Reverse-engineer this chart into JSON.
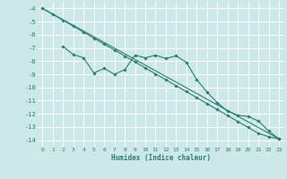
{
  "xlabel": "Humidex (Indice chaleur)",
  "bg_color": "#cce8e8",
  "grid_color": "#ffffff",
  "line_color": "#2e7d6e",
  "xlim": [
    -0.5,
    23.5
  ],
  "ylim": [
    -14.5,
    -3.5
  ],
  "xticks": [
    0,
    1,
    2,
    3,
    4,
    5,
    6,
    7,
    8,
    9,
    10,
    11,
    12,
    13,
    14,
    15,
    16,
    17,
    18,
    19,
    20,
    21,
    22,
    23
  ],
  "yticks": [
    -4,
    -5,
    -6,
    -7,
    -8,
    -9,
    -10,
    -11,
    -12,
    -13,
    -14
  ],
  "line1_x": [
    0,
    1,
    2,
    3,
    4,
    5,
    6,
    7,
    8,
    9,
    10,
    11,
    12,
    13,
    14,
    15,
    16,
    17,
    18,
    19,
    20,
    21,
    22,
    23
  ],
  "line1_y": [
    -4.0,
    -4.45,
    -4.9,
    -5.35,
    -5.8,
    -6.26,
    -6.71,
    -7.16,
    -7.61,
    -8.06,
    -8.52,
    -8.97,
    -9.42,
    -9.87,
    -10.32,
    -10.77,
    -11.23,
    -11.68,
    -12.13,
    -12.58,
    -13.03,
    -13.48,
    -13.74,
    -13.9
  ],
  "line2_x": [
    2,
    3,
    4,
    5,
    6,
    7,
    8,
    9,
    10,
    11,
    12,
    13,
    14,
    15,
    16,
    17,
    18,
    19,
    20,
    21,
    22,
    23
  ],
  "line2_y": [
    -6.9,
    -7.5,
    -7.75,
    -8.9,
    -8.55,
    -9.0,
    -8.65,
    -7.55,
    -7.75,
    -7.55,
    -7.8,
    -7.6,
    -8.1,
    -9.4,
    -10.35,
    -11.15,
    -11.8,
    -12.1,
    -12.2,
    -12.55,
    -13.3,
    -13.9
  ],
  "line3_x": [
    0,
    23
  ],
  "line3_y": [
    -4.0,
    -13.9
  ],
  "marker": "D",
  "marker_size": 1.8,
  "linewidth": 0.8
}
